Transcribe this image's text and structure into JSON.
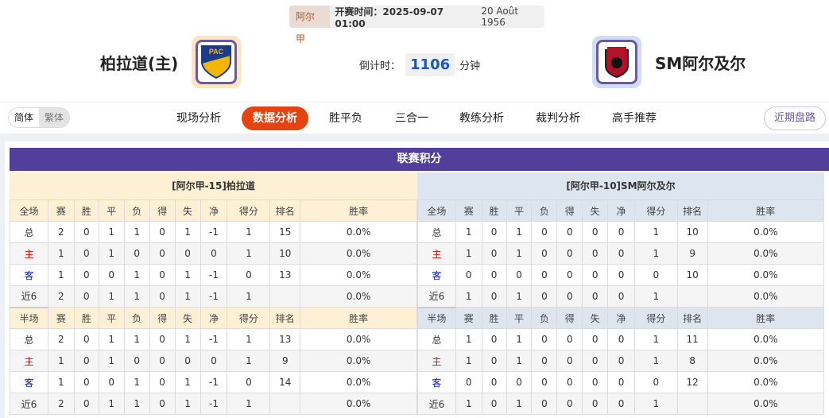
{
  "match": {
    "league": "阿尔甲",
    "kickoff": "开赛时间：2025-09-07 01:00",
    "date_alt": "20 Août 1956",
    "home": "柏拉道(主)",
    "away": "SM阿尔及尔",
    "home_logo_text": "PAC",
    "countdown_label": "倒计时：",
    "countdown_value": "1106",
    "countdown_unit": "分钟"
  },
  "nav": {
    "lang": [
      "简体",
      "繁体"
    ],
    "tabs": [
      "现场分析",
      "数据分析",
      "胜平负",
      "三合一",
      "教练分析",
      "裁判分析",
      "高手推荐"
    ],
    "active_tab": "数据分析",
    "recent": "近期盘路"
  },
  "standings": {
    "title": "联赛积分",
    "headers_full": [
      "全场",
      "赛",
      "胜",
      "平",
      "负",
      "得",
      "失",
      "净",
      "得分",
      "排名",
      "胜率"
    ],
    "headers_half": [
      "半场",
      "赛",
      "胜",
      "平",
      "负",
      "得",
      "失",
      "净",
      "得分",
      "排名",
      "胜率"
    ],
    "home": {
      "name": "[阿尔甲-15]柏拉道",
      "full": [
        [
          "总",
          "2",
          "0",
          "1",
          "1",
          "0",
          "1",
          "-1",
          "1",
          "15",
          "0.0%"
        ],
        [
          "主",
          "1",
          "0",
          "1",
          "0",
          "0",
          "0",
          "0",
          "1",
          "10",
          "0.0%"
        ],
        [
          "客",
          "1",
          "0",
          "0",
          "1",
          "0",
          "1",
          "-1",
          "0",
          "13",
          "0.0%"
        ],
        [
          "近6",
          "2",
          "0",
          "1",
          "1",
          "0",
          "1",
          "-1",
          "1",
          "",
          "0.0%"
        ]
      ],
      "half": [
        [
          "总",
          "2",
          "0",
          "1",
          "1",
          "0",
          "1",
          "-1",
          "1",
          "13",
          "0.0%"
        ],
        [
          "主",
          "1",
          "0",
          "1",
          "0",
          "0",
          "0",
          "0",
          "1",
          "9",
          "0.0%"
        ],
        [
          "客",
          "1",
          "0",
          "0",
          "1",
          "0",
          "1",
          "-1",
          "0",
          "14",
          "0.0%"
        ],
        [
          "近6",
          "2",
          "0",
          "1",
          "1",
          "0",
          "1",
          "-1",
          "1",
          "",
          "0.0%"
        ]
      ]
    },
    "away": {
      "name": "[阿尔甲-10]SM阿尔及尔",
      "full": [
        [
          "总",
          "1",
          "0",
          "1",
          "0",
          "0",
          "0",
          "0",
          "1",
          "10",
          "0.0%"
        ],
        [
          "主",
          "1",
          "0",
          "1",
          "0",
          "0",
          "0",
          "0",
          "1",
          "9",
          "0.0%"
        ],
        [
          "客",
          "0",
          "0",
          "0",
          "0",
          "0",
          "0",
          "0",
          "0",
          "10",
          "0.0%"
        ],
        [
          "近6",
          "1",
          "0",
          "1",
          "0",
          "0",
          "0",
          "0",
          "1",
          "",
          "0.0%"
        ]
      ],
      "half": [
        [
          "总",
          "1",
          "0",
          "1",
          "0",
          "0",
          "0",
          "0",
          "1",
          "11",
          "0.0%"
        ],
        [
          "主",
          "1",
          "0",
          "1",
          "0",
          "0",
          "0",
          "0",
          "1",
          "8",
          "0.0%"
        ],
        [
          "客",
          "0",
          "0",
          "0",
          "0",
          "0",
          "0",
          "0",
          "0",
          "12",
          "0.0%"
        ],
        [
          "近6",
          "1",
          "0",
          "1",
          "0",
          "0",
          "0",
          "0",
          "1",
          "",
          "0.0%"
        ]
      ]
    }
  },
  "colors": {
    "accent": "#e5430f",
    "header": "#523f9b",
    "home_label": "#e00000",
    "away_label": "#1020c8"
  }
}
